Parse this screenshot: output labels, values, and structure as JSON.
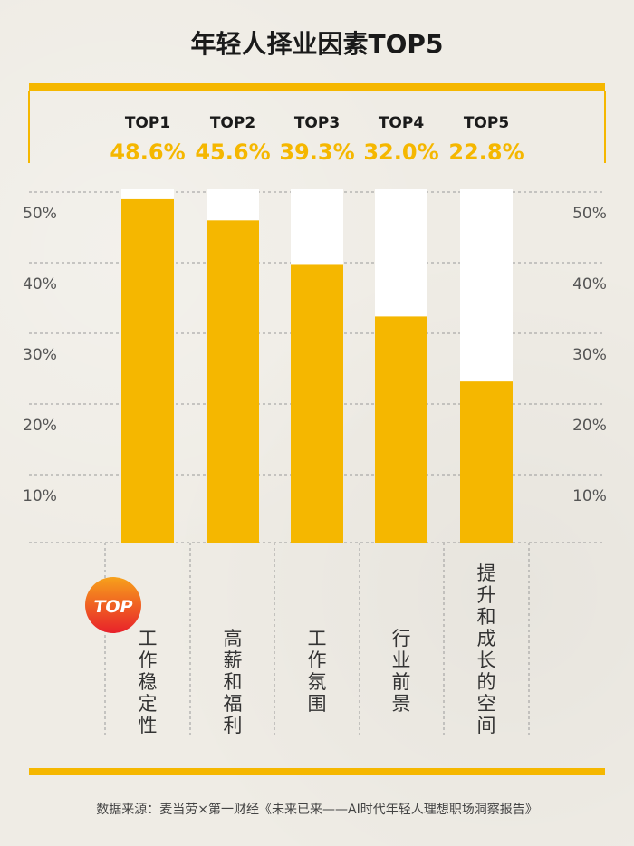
{
  "chart_data": {
    "type": "bar",
    "title": "年轻人择业因素TOP5",
    "ranks": [
      "TOP1",
      "TOP2",
      "TOP3",
      "TOP4",
      "TOP5"
    ],
    "value_labels": [
      "48.6%",
      "45.6%",
      "39.3%",
      "32.0%",
      "22.8%"
    ],
    "categories": [
      "工作稳定性",
      "高薪和福利",
      "工作氛围",
      "行业前景",
      "提升和成长的空间"
    ],
    "values": [
      48.6,
      45.6,
      39.3,
      32.0,
      22.8
    ],
    "yticks": [
      "10%",
      "20%",
      "30%",
      "40%",
      "50%"
    ],
    "ylim": [
      0,
      50
    ],
    "grid": true,
    "badge": "TOP",
    "source": "数据来源：麦当劳×第一财经《未来已来——AI时代年轻人理想职场洞察报告》"
  },
  "colors": {
    "accent": "#f5b700",
    "bar_track": "#ffffff",
    "background": "#efece5",
    "badge_top": "#f7a21b",
    "badge_bottom": "#e8202a"
  }
}
